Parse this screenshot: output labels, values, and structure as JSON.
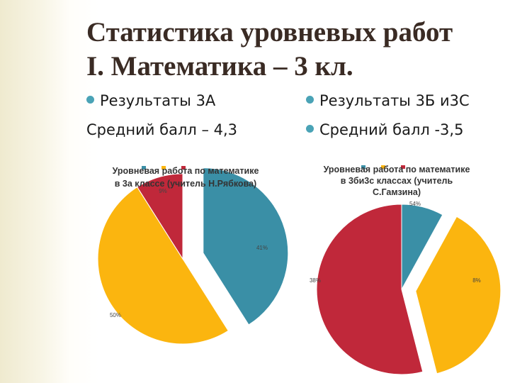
{
  "slide": {
    "title_line1": "Статистика уровневых работ",
    "title_line2": "I. Математика – 3 кл.",
    "left": {
      "results": "Результаты 3А",
      "average": "Средний балл – 4,3"
    },
    "right": {
      "results": "Результаты 3Б и3С",
      "average": "Средний балл -3,5"
    }
  },
  "chart_data": [
    {
      "type": "pie",
      "title": [
        "Уровневая работа по математике",
        "в 3а классе (учитель Н.Рябкова)"
      ],
      "legend_position": "top",
      "slices": [
        {
          "name": "",
          "value": 41,
          "label": "41%",
          "color": "#3a8fa6"
        },
        {
          "name": "",
          "value": 50,
          "label": "50%",
          "color": "#fbb50f"
        },
        {
          "name": "",
          "value": 9,
          "label": "9%",
          "color": "#c0283a"
        }
      ]
    },
    {
      "type": "pie",
      "title": [
        "Уровневая работа по математике",
        "в 3би3с классах (учитель",
        "С.Гамзина)"
      ],
      "legend_position": "top",
      "slices": [
        {
          "name": "",
          "value": 8,
          "label": "8%",
          "color": "#3a8fa6"
        },
        {
          "name": "",
          "value": 38,
          "label": "38%",
          "color": "#fbb50f"
        },
        {
          "name": "",
          "value": 54,
          "label": "54%",
          "color": "#c0283a"
        }
      ]
    }
  ]
}
